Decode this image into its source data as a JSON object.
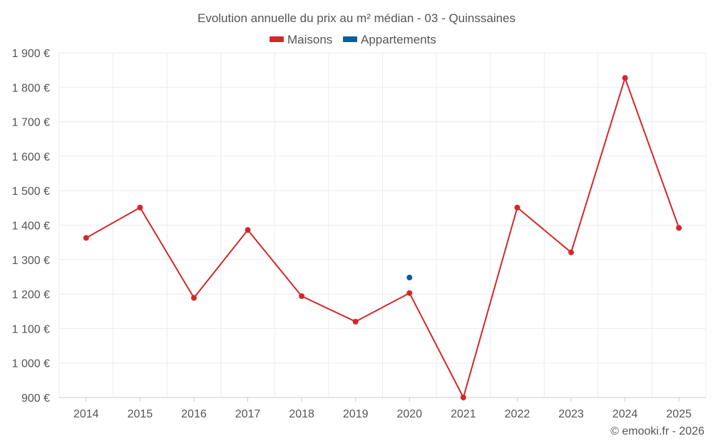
{
  "chart_data": {
    "type": "line",
    "title": "Evolution annuelle du prix au m² médian - 03 - Quinssaines",
    "categories": [
      "2014",
      "2015",
      "2016",
      "2017",
      "2018",
      "2019",
      "2020",
      "2021",
      "2022",
      "2023",
      "2024",
      "2025"
    ],
    "series": [
      {
        "name": "Maisons",
        "color": "#d62728",
        "values": [
          1363,
          1451,
          1189,
          1386,
          1194,
          1120,
          1203,
          900,
          1451,
          1321,
          1827,
          1392
        ]
      },
      {
        "name": "Appartements",
        "color": "#0b5e99",
        "values": [
          null,
          null,
          null,
          null,
          null,
          null,
          1248,
          null,
          null,
          null,
          null,
          null
        ]
      }
    ],
    "ylim": [
      900,
      1900
    ],
    "yticks": [
      900,
      1000,
      1100,
      1200,
      1300,
      1400,
      1500,
      1600,
      1700,
      1800,
      1900
    ],
    "ytick_labels": [
      "900 €",
      "1 000 €",
      "1 100 €",
      "1 200 €",
      "1 300 €",
      "1 400 €",
      "1 500 €",
      "1 600 €",
      "1 700 €",
      "1 800 €",
      "1 900 €"
    ],
    "xlabel": "",
    "ylabel": "",
    "legend_position": "top-center",
    "grid": true
  },
  "credit": "© emooki.fr - 2026"
}
